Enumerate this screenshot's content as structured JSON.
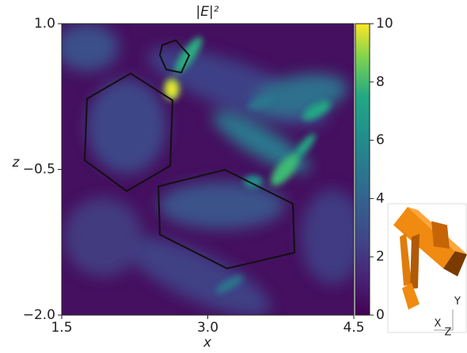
{
  "chart_data": {
    "type": "heatmap",
    "title": "|E|²",
    "x_label": "x",
    "y_label": "z",
    "xlim": [
      1.5,
      4.5
    ],
    "xticks": [
      1.5,
      {
        "value": 3,
        "label": "3.0"
      },
      4.5
    ],
    "ylim": [
      -2,
      1
    ],
    "yticks": [
      {
        "value": -2,
        "label": "−2.0"
      },
      {
        "value": -0.5,
        "label": "−0.5"
      },
      {
        "value": 1,
        "label": "1.0"
      }
    ],
    "colormap": "viridis",
    "clim": [
      0,
      10
    ],
    "cticks": [
      0,
      2,
      4,
      6,
      8,
      10
    ],
    "inset_axis_labels": [
      "Y",
      "X",
      "Z"
    ]
  }
}
